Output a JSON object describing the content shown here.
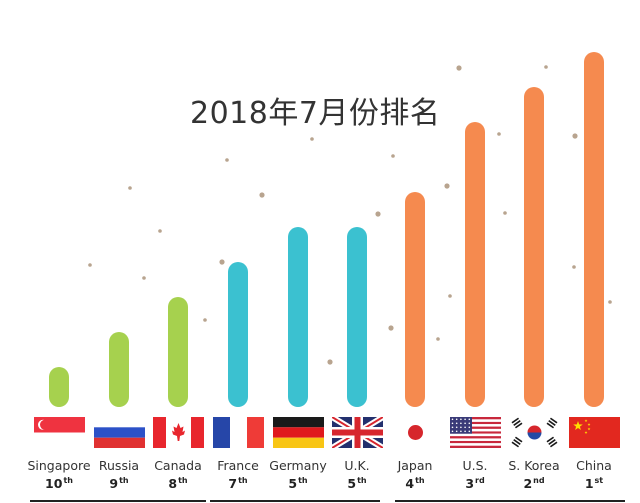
{
  "chart_data": {
    "type": "bar",
    "title": "2018年7月份排名",
    "categories": [
      "Singapore",
      "Russia",
      "Canada",
      "France",
      "Germany",
      "U.K.",
      "Japan",
      "U.S.",
      "S. Korea",
      "China"
    ],
    "ranks": [
      {
        "num": "10",
        "suffix": "th"
      },
      {
        "num": "9",
        "suffix": "th"
      },
      {
        "num": "8",
        "suffix": "th"
      },
      {
        "num": "7",
        "suffix": "th"
      },
      {
        "num": "5",
        "suffix": "th"
      },
      {
        "num": "5",
        "suffix": "th"
      },
      {
        "num": "4",
        "suffix": "th"
      },
      {
        "num": "3",
        "suffix": "rd"
      },
      {
        "num": "2",
        "suffix": "nd"
      },
      {
        "num": "1",
        "suffix": "st"
      }
    ],
    "values": [
      1,
      2,
      3,
      4,
      5,
      5,
      6,
      8,
      9,
      10
    ],
    "bar_colors": [
      "#a6d14e",
      "#a6d14e",
      "#a6d14e",
      "#3bc1d0",
      "#3bc1d0",
      "#3bc1d0",
      "#f58a4f",
      "#f58a4f",
      "#f58a4f",
      "#f58a4f"
    ],
    "flags": [
      "singapore-flag",
      "russia-flag",
      "canada-flag",
      "france-flag",
      "germany-flag",
      "uk-flag",
      "japan-flag",
      "us-flag",
      "south-korea-flag",
      "china-flag"
    ],
    "ylim": [
      0,
      10
    ],
    "grid": false,
    "legend": "none"
  },
  "colors": {
    "green": "#a6d14e",
    "teal": "#3bc1d0",
    "orange": "#f58a4f",
    "dots": "#a0856a"
  }
}
